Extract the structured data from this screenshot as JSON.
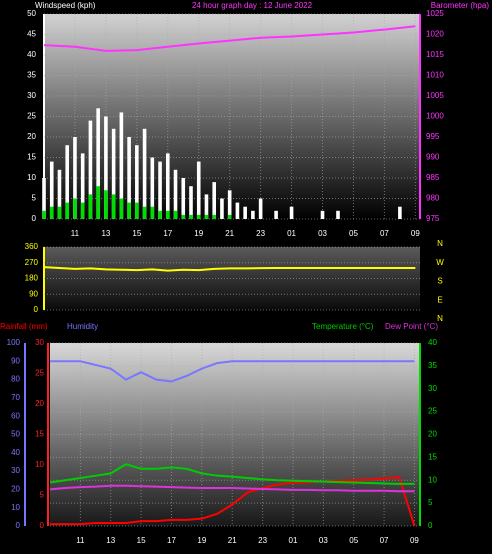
{
  "chart_data": [
    {
      "type": "bar",
      "title": "24 hour graph day : 12 June 2022",
      "title_color": "#ff33ff",
      "y_label": "Windspeed (kph)",
      "y2_label": "Barometer (hpa)",
      "xlim": [
        0,
        24.3
      ],
      "xticks": [
        {
          "value": 2,
          "label": "11"
        },
        {
          "value": 4,
          "label": "13"
        },
        {
          "value": 6,
          "label": "15"
        },
        {
          "value": 8,
          "label": "17"
        },
        {
          "value": 10,
          "label": "19"
        },
        {
          "value": 12,
          "label": "21"
        },
        {
          "value": 14,
          "label": "23"
        },
        {
          "value": 16,
          "label": "01"
        },
        {
          "value": 18,
          "label": "03"
        },
        {
          "value": 20,
          "label": "05"
        },
        {
          "value": 22,
          "label": "07"
        },
        {
          "value": 24,
          "label": "09"
        }
      ],
      "ylim": [
        0,
        50
      ],
      "yticks": [
        0,
        5,
        10,
        15,
        20,
        25,
        30,
        35,
        40,
        45,
        50
      ],
      "ytick_color": "#ffffff",
      "y2lim": [
        975,
        1025
      ],
      "y2ticks": [
        975,
        980,
        985,
        990,
        995,
        1000,
        1005,
        1010,
        1015,
        1020,
        1025
      ],
      "y2tick_color": "#ff33ff",
      "grid": "y",
      "series": [
        {
          "type": "bar",
          "color": "#ffffff",
          "x": [
            0,
            0.5,
            1,
            1.5,
            2,
            2.5,
            3,
            3.5,
            4,
            4.5,
            5,
            5.5,
            6,
            6.5,
            7,
            7.5,
            8,
            8.5,
            9,
            9.5,
            10,
            10.5,
            11,
            11.5,
            12,
            12.5,
            13,
            13.5,
            14,
            14.5,
            15,
            15.5,
            16,
            16.5,
            17,
            17.5,
            18,
            18.5,
            19,
            19.5,
            20,
            20.5,
            21,
            21.5,
            22,
            22.5,
            23,
            23.5,
            24
          ],
          "values": [
            10,
            14,
            12,
            18,
            20,
            16,
            24,
            27,
            25,
            22,
            26,
            20,
            18,
            22,
            15,
            14,
            16,
            12,
            10,
            8,
            14,
            6,
            9,
            5,
            7,
            4,
            3,
            2,
            5,
            0,
            2,
            0,
            3,
            0,
            0,
            0,
            2,
            0,
            2,
            0,
            0,
            0,
            0,
            0,
            0,
            0,
            3,
            0,
            0
          ]
        },
        {
          "type": "bar",
          "color": "#00dd00",
          "x": [
            0,
            0.5,
            1,
            1.5,
            2,
            2.5,
            3,
            3.5,
            4,
            4.5,
            5,
            5.5,
            6,
            6.5,
            7,
            7.5,
            8,
            8.5,
            9,
            9.5,
            10,
            10.5,
            11,
            11.5,
            12,
            12.5,
            13,
            13.5,
            14,
            14.5,
            15,
            15.5,
            16,
            16.5,
            17,
            17.5,
            18,
            18.5,
            19,
            19.5,
            20,
            20.5,
            21,
            21.5,
            22,
            22.5,
            23,
            23.5,
            24
          ],
          "values": [
            2,
            3,
            3,
            4,
            5,
            4,
            6,
            8,
            7,
            6,
            5,
            4,
            4,
            3,
            3,
            2,
            2,
            2,
            1,
            1,
            1,
            1,
            1,
            0,
            1,
            0,
            0,
            0,
            0,
            0,
            0,
            0,
            0,
            0,
            0,
            0,
            0,
            0,
            0,
            0,
            0,
            0,
            0,
            0,
            0,
            0,
            0,
            0,
            0
          ]
        },
        {
          "type": "line",
          "axis": "y2",
          "color": "#ff33ff",
          "x": [
            0,
            2,
            4,
            6,
            8,
            10,
            12,
            14,
            16,
            18,
            20,
            22,
            24
          ],
          "values": [
            1017.4,
            1017,
            1016,
            1016.2,
            1017,
            1017.8,
            1018.5,
            1019.2,
            1019.5,
            1020,
            1020.5,
            1021.2,
            1022
          ]
        }
      ]
    },
    {
      "type": "line",
      "xlim": [
        0,
        24.3
      ],
      "ylim": [
        0,
        360
      ],
      "yticks": [
        0,
        90,
        180,
        270,
        360
      ],
      "ytick_color": "#ffff00",
      "y2lim": [
        0,
        360
      ],
      "y2ticks": [
        {
          "value": 360,
          "label": "N"
        },
        {
          "value": 270,
          "label": "W"
        },
        {
          "value": 180,
          "label": "S"
        },
        {
          "value": 90,
          "label": "E"
        },
        {
          "value": 0,
          "label": "N"
        }
      ],
      "y2tick_color": "#ffff00",
      "grid": "y",
      "series": [
        {
          "type": "line",
          "color": "#ffff00",
          "x": [
            0,
            1,
            2,
            3,
            4,
            5,
            6,
            7,
            8,
            9,
            10,
            11,
            12,
            13,
            14,
            15,
            16,
            17,
            18,
            19,
            20,
            21,
            22,
            23,
            24
          ],
          "values": [
            245,
            240,
            235,
            238,
            232,
            230,
            228,
            232,
            225,
            230,
            228,
            235,
            238,
            238,
            239,
            240,
            240,
            240,
            240,
            240,
            240,
            240,
            240,
            240,
            240
          ]
        }
      ]
    },
    {
      "type": "line",
      "xlim": [
        0,
        24.3
      ],
      "xticks": [
        {
          "value": 2,
          "label": "11"
        },
        {
          "value": 4,
          "label": "13"
        },
        {
          "value": 6,
          "label": "15"
        },
        {
          "value": 8,
          "label": "17"
        },
        {
          "value": 10,
          "label": "19"
        },
        {
          "value": 12,
          "label": "21"
        },
        {
          "value": 14,
          "label": "23"
        },
        {
          "value": 16,
          "label": "01"
        },
        {
          "value": 18,
          "label": "03"
        },
        {
          "value": 20,
          "label": "05"
        },
        {
          "value": 22,
          "label": "07"
        },
        {
          "value": 24,
          "label": "09"
        }
      ],
      "ylim": [
        0,
        30
      ],
      "yticks": [
        0,
        5,
        10,
        15,
        20,
        25,
        30
      ],
      "ytick_color": "#ff2020",
      "y2lim": [
        0,
        40
      ],
      "y2ticks": [
        0,
        5,
        10,
        15,
        20,
        25,
        30,
        35,
        40
      ],
      "y2tick_color": "#00dd00",
      "y3lim": [
        0,
        100
      ],
      "y3ticks": [
        0,
        10,
        20,
        30,
        40,
        50,
        60,
        70,
        80,
        90,
        100
      ],
      "y3tick_color": "#7777ff",
      "grid": "y2",
      "series": [
        {
          "name": "Rainfall (mm)",
          "type": "line",
          "axis": "y",
          "color": "#ff0000",
          "x": [
            0,
            1,
            2,
            3,
            4,
            5,
            6,
            7,
            8,
            9,
            10,
            11,
            12,
            13,
            14,
            15,
            16,
            17,
            18,
            19,
            20,
            21,
            22,
            23,
            24
          ],
          "values": [
            0.3,
            0.3,
            0.3,
            0.5,
            0.5,
            0.5,
            0.8,
            0.8,
            1,
            1,
            1.2,
            2,
            3.5,
            5.5,
            6.2,
            6.8,
            7.1,
            7.2,
            7.3,
            7.4,
            7.5,
            7.6,
            7.8,
            8,
            0
          ]
        },
        {
          "name": "Humidity",
          "type": "line",
          "axis": "y3",
          "color": "#7777ff",
          "x": [
            0,
            1,
            2,
            3,
            4,
            5,
            6,
            7,
            8,
            9,
            10,
            11,
            12,
            13,
            14,
            15,
            16,
            17,
            18,
            19,
            20,
            21,
            22,
            23,
            24
          ],
          "values": [
            90,
            90,
            90,
            88,
            86,
            80,
            84,
            80,
            79,
            82,
            86,
            89,
            90,
            90,
            90,
            90,
            90,
            90,
            90,
            90,
            90,
            90,
            90,
            90,
            90
          ]
        },
        {
          "name": "Temperature (°C)",
          "type": "line",
          "axis": "y2",
          "color": "#00cc00",
          "x": [
            0,
            1,
            2,
            3,
            4,
            5,
            6,
            7,
            8,
            9,
            10,
            11,
            12,
            13,
            14,
            15,
            16,
            17,
            18,
            19,
            20,
            21,
            22,
            23,
            24
          ],
          "values": [
            9.5,
            10,
            10.5,
            11,
            11.5,
            13.5,
            12.5,
            12.5,
            12.8,
            12.5,
            11.5,
            11,
            10.8,
            10.5,
            10.2,
            10,
            9.9,
            9.8,
            9.7,
            9.6,
            9.5,
            9.4,
            9.3,
            9.2,
            9.2
          ]
        },
        {
          "name": "Dew Point (°C)",
          "type": "line",
          "axis": "y2",
          "color": "#dd33dd",
          "x": [
            0,
            1,
            2,
            3,
            4,
            5,
            6,
            7,
            8,
            9,
            10,
            11,
            12,
            13,
            14,
            15,
            16,
            17,
            18,
            19,
            20,
            21,
            22,
            23,
            24
          ],
          "values": [
            8,
            8.3,
            8.5,
            8.6,
            8.8,
            8.8,
            8.7,
            8.6,
            8.5,
            8.4,
            8.3,
            8.3,
            8.3,
            8.2,
            8.1,
            8,
            7.9,
            7.9,
            7.8,
            7.8,
            7.7,
            7.7,
            7.7,
            7.6,
            7.6
          ]
        }
      ]
    }
  ]
}
